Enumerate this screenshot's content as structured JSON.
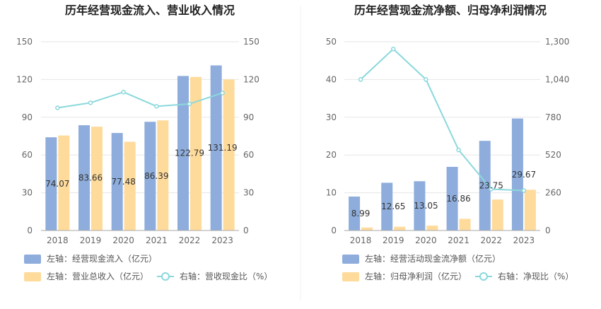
{
  "chart_data": [
    {
      "type": "bar",
      "title": "历年经营现金流入、营业收入情况",
      "categories": [
        "2018",
        "2019",
        "2020",
        "2021",
        "2022",
        "2023"
      ],
      "left_axis": {
        "ylim": [
          0,
          150
        ],
        "ticks": [
          "0",
          "30",
          "60",
          "90",
          "120",
          "150"
        ]
      },
      "right_axis": {
        "ylim": [
          0,
          150
        ],
        "ticks": [
          "0",
          "30",
          "60",
          "90",
          "120",
          "150"
        ]
      },
      "series": [
        {
          "name": "左轴：经营现金流入（亿元）",
          "type": "bar",
          "axis": "left",
          "color": "#8eaddc",
          "values": [
            74.07,
            83.66,
            77.48,
            86.39,
            122.79,
            131.19
          ],
          "labels": [
            "74.07",
            "83.66",
            "77.48",
            "86.39",
            "122.79",
            "131.19"
          ]
        },
        {
          "name": "左轴：营业总收入（亿元）",
          "type": "bar",
          "axis": "left",
          "color": "#fedb9b",
          "values": [
            75.5,
            82.5,
            70.5,
            87.5,
            122.0,
            120.0
          ]
        },
        {
          "name": "右轴：营收现金比（%）",
          "type": "line",
          "axis": "right",
          "color": "#8bd8dc",
          "values": [
            97.5,
            101.5,
            110.0,
            98.7,
            100.6,
            109.3
          ]
        }
      ]
    },
    {
      "type": "bar",
      "title": "历年经营现金流净额、归母净利润情况",
      "categories": [
        "2018",
        "2019",
        "2020",
        "2021",
        "2022",
        "2023"
      ],
      "left_axis": {
        "ylim": [
          0,
          50
        ],
        "ticks": [
          "0",
          "10",
          "20",
          "30",
          "40",
          "50"
        ]
      },
      "right_axis": {
        "ylim": [
          0,
          1300
        ],
        "ticks": [
          "0",
          "260",
          "520",
          "780",
          "1,040",
          "1,300"
        ]
      },
      "series": [
        {
          "name": "左轴：经营活动现金流净额（亿元）",
          "type": "bar",
          "axis": "left",
          "color": "#8eaddc",
          "values": [
            8.99,
            12.65,
            13.05,
            16.86,
            23.75,
            29.67
          ],
          "labels": [
            "8.99",
            "12.65",
            "13.05",
            "16.86",
            "23.75",
            "29.67"
          ]
        },
        {
          "name": "左轴：归母净利润（亿元）",
          "type": "bar",
          "axis": "left",
          "color": "#fedb9b",
          "values": [
            0.8,
            1.0,
            1.3,
            3.1,
            8.2,
            10.8
          ]
        },
        {
          "name": "右轴：净现比（%）",
          "type": "line",
          "axis": "right",
          "color": "#8bd8dc",
          "values": [
            1040,
            1250,
            1040,
            555,
            285,
            275
          ]
        }
      ]
    }
  ]
}
